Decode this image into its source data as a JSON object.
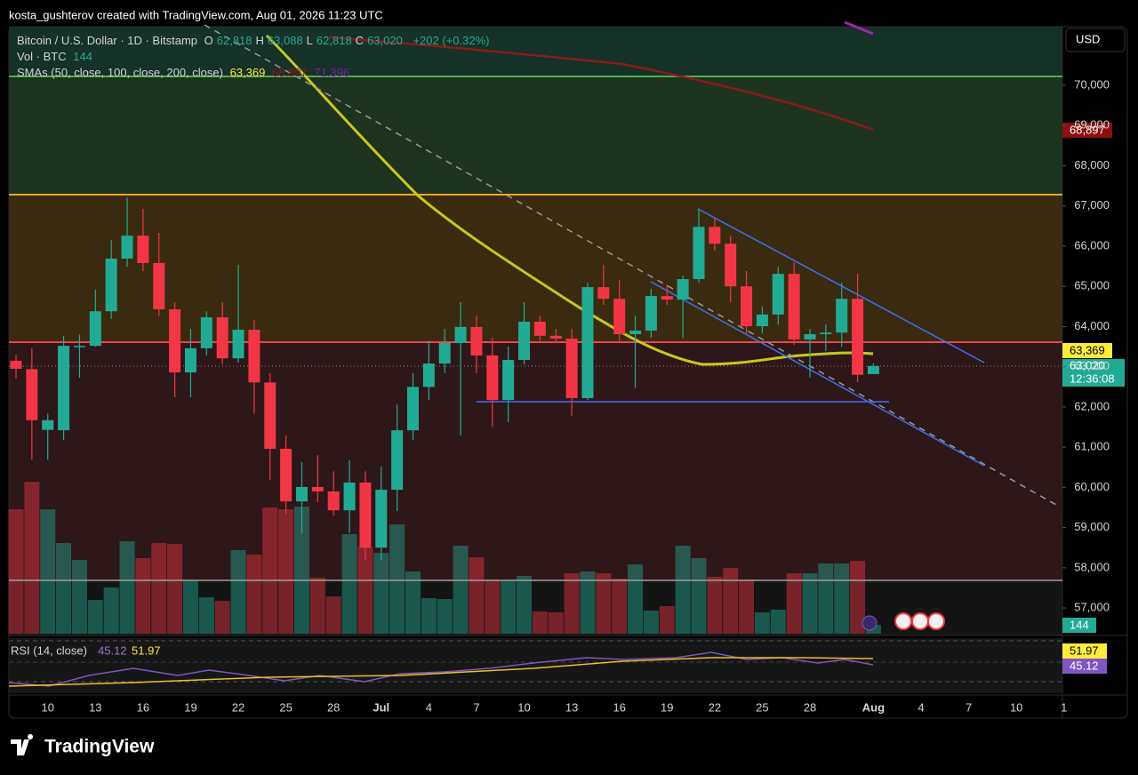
{
  "header": {
    "title": "kosta_gushterov created with TradingView.com, Aug 01, 2026 11:23 UTC"
  },
  "legend": {
    "symbol": "Bitcoin / U.S. Dollar · 1D · Bitstamp",
    "ohlc": [
      {
        "label": "O",
        "value": "62,818"
      },
      {
        "label": "H",
        "value": "63,088"
      },
      {
        "label": "L",
        "value": "62,818"
      },
      {
        "label": "C",
        "value": "63,020"
      }
    ],
    "change": "+202 (+0.32%)",
    "volume_label": "Vol · BTC",
    "volume_value": "144",
    "sma_label": "SMAs (50, close, 100, close, 200, close)",
    "sma_values": [
      "63,369",
      "68,897",
      "71,396"
    ],
    "countdown": "12:36:08",
    "currency": "USD"
  },
  "rsi": {
    "label": "RSI (14, close)",
    "values": [
      "45.12",
      "51.97"
    ]
  },
  "footer": {
    "brand": "TradingView"
  },
  "chart_data": {
    "type": "candlestick",
    "categories": [
      null,
      null,
      "10",
      null,
      null,
      "13",
      null,
      null,
      "16",
      null,
      null,
      "19",
      null,
      null,
      "22",
      null,
      null,
      "25",
      null,
      null,
      "28",
      null,
      null,
      "Jul",
      null,
      null,
      "4",
      null,
      null,
      "7",
      null,
      null,
      "10",
      null,
      null,
      "13",
      null,
      null,
      "16",
      null,
      null,
      "19",
      null,
      null,
      "22",
      null,
      null,
      "25",
      null,
      null,
      "28",
      null,
      null,
      null,
      "Aug",
      null,
      null,
      "4",
      null,
      null,
      "7",
      null,
      null,
      "10",
      null,
      null,
      "1"
    ],
    "open": [
      63150,
      62940,
      61430,
      61420,
      63500,
      63520,
      64380,
      65690,
      66260,
      65580,
      64430,
      62860,
      63460,
      64230,
      63210,
      63920,
      62610,
      60960,
      59650,
      60010,
      59900,
      59430,
      60120,
      58500,
      59940,
      61420,
      62500,
      63080,
      63590,
      63990,
      63280,
      62170,
      63170,
      64120,
      63770,
      63700,
      62220,
      64980,
      64690,
      63810,
      63900,
      64760,
      64670,
      65180,
      66480,
      66060,
      65000,
      64010,
      64300,
      65310,
      63680,
      63810,
      63850,
      64690,
      62818,
      null,
      null,
      null,
      null,
      null,
      null,
      null,
      null,
      null,
      null,
      null,
      null
    ],
    "high": [
      63300,
      63460,
      61840,
      63770,
      63800,
      64920,
      66150,
      67210,
      66930,
      66330,
      64610,
      63940,
      64380,
      64610,
      65530,
      64160,
      62840,
      61290,
      60630,
      60800,
      60400,
      60670,
      60400,
      60520,
      62060,
      62840,
      63650,
      63940,
      64610,
      64270,
      63720,
      63500,
      64610,
      64270,
      63940,
      63940,
      65090,
      65530,
      65160,
      64270,
      64940,
      65050,
      65270,
      66930,
      66710,
      66260,
      65380,
      64500,
      65490,
      65600,
      63940,
      64050,
      65090,
      65310,
      63088,
      null,
      null,
      null,
      null,
      null,
      null,
      null,
      null,
      null,
      null,
      null,
      null
    ],
    "low": [
      62700,
      60690,
      60690,
      61180,
      62730,
      63500,
      64190,
      65490,
      65380,
      64270,
      62240,
      62240,
      63280,
      63060,
      63100,
      61840,
      60180,
      59340,
      58860,
      59630,
      59300,
      58860,
      58190,
      58190,
      59410,
      61180,
      62170,
      62840,
      61290,
      62840,
      61510,
      61620,
      63060,
      63650,
      63610,
      61780,
      62170,
      64540,
      63650,
      62480,
      63720,
      64540,
      63720,
      65090,
      65890,
      64610,
      63830,
      63830,
      64050,
      63540,
      62730,
      63390,
      63500,
      62620,
      62818,
      null,
      null,
      null,
      null,
      null,
      null,
      null,
      null,
      null,
      null,
      null,
      null
    ],
    "close": [
      62950,
      61670,
      61670,
      63520,
      63520,
      64380,
      65690,
      66260,
      65580,
      64430,
      62860,
      63460,
      64230,
      63210,
      63920,
      62610,
      60960,
      59650,
      60010,
      59900,
      59430,
      60120,
      58500,
      59940,
      61420,
      62500,
      63080,
      63590,
      63990,
      63280,
      62170,
      63170,
      64120,
      63770,
      63700,
      62220,
      64980,
      64690,
      63810,
      63900,
      64760,
      64670,
      65180,
      66480,
      66060,
      65000,
      64010,
      64300,
      65310,
      63680,
      63810,
      63850,
      64690,
      62800,
      63020,
      null,
      null,
      null,
      null,
      null,
      null,
      null,
      null,
      null,
      null,
      null,
      null
    ],
    "volume": [
      2016,
      2462,
      2016,
      1469,
      1195,
      547,
      749,
      1498,
      1224,
      1469,
      1454,
      864,
      590,
      533,
      1354,
      1282,
      2045,
      2016,
      2059,
      907,
      605,
      1613,
      1411,
      1310,
      1771,
      1008,
      576,
      562,
      1426,
      1238,
      878,
      864,
      936,
      360,
      346,
      979,
      1008,
      979,
      893,
      1123,
      374,
      446,
      1426,
      1224,
      922,
      1066,
      878,
      346,
      389,
      979,
      979,
      1138,
      1138,
      1181,
      144,
      null,
      null,
      null,
      null,
      null,
      null,
      null,
      null,
      null,
      null,
      null,
      null
    ],
    "ylim": [
      56360,
      71460
    ],
    "volume_ylim": [
      0,
      9840
    ],
    "yticks": [
      {
        "value": 57000,
        "label": "57,000"
      },
      {
        "value": 58000,
        "label": "58,000"
      },
      {
        "value": 59000,
        "label": "59,000"
      },
      {
        "value": 60000,
        "label": "60,000"
      },
      {
        "value": 61000,
        "label": "61,000"
      },
      {
        "value": 62000,
        "label": "62,000"
      },
      {
        "value": 63000,
        "label": "63,000"
      },
      {
        "value": 64000,
        "label": "64,000"
      },
      {
        "value": 65000,
        "label": "65,000"
      },
      {
        "value": 66000,
        "label": "66,000"
      },
      {
        "value": 67000,
        "label": "67,000"
      },
      {
        "value": 68000,
        "label": "68,000"
      },
      {
        "value": 69000,
        "label": "69,000"
      },
      {
        "value": 70000,
        "label": "70,000"
      }
    ],
    "up_color": "#22ab94",
    "down_color": "#f23645"
  }
}
